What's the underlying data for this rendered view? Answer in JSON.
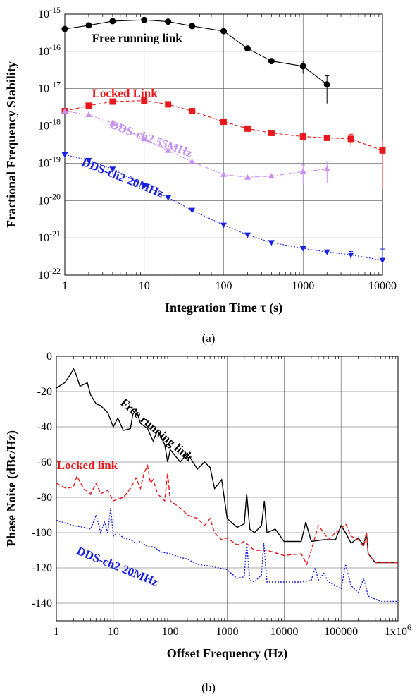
{
  "colors": {
    "black": "#000000",
    "red": "#e8191c",
    "violet": "#c890f0",
    "blue": "#1a22e0",
    "grid": "#555555"
  },
  "chart_data": [
    {
      "type": "line",
      "caption": "(a)",
      "xlabel": "Integration Time  τ (s)",
      "ylabel": "Fractional Frequency Stability",
      "x_scale": "log",
      "y_scale": "log",
      "xlim": [
        1,
        10000
      ],
      "ylim": [
        1e-22,
        1e-15
      ],
      "grid": true,
      "x_ticks": [
        {
          "v": 1,
          "label": "1"
        },
        {
          "v": 10,
          "label": "10"
        },
        {
          "v": 100,
          "label": "100"
        },
        {
          "v": 1000,
          "label": "1000"
        },
        {
          "v": 10000,
          "label": "10000"
        }
      ],
      "y_ticks": [
        {
          "v": 1e-15,
          "base": "10",
          "exp": "-15"
        },
        {
          "v": 1e-16,
          "base": "10",
          "exp": "-16"
        },
        {
          "v": 1e-17,
          "base": "10",
          "exp": "-17"
        },
        {
          "v": 1e-18,
          "base": "10",
          "exp": "-18"
        },
        {
          "v": 1e-19,
          "base": "10",
          "exp": "-19"
        },
        {
          "v": 1e-20,
          "base": "10",
          "exp": "-20"
        },
        {
          "v": 1e-21,
          "base": "10",
          "exp": "-21"
        },
        {
          "v": 1e-22,
          "base": "10",
          "exp": "-22"
        }
      ],
      "series": [
        {
          "name": "Free running link",
          "color": "#000000",
          "marker": "circle",
          "dash": "",
          "x": [
            1,
            2,
            4,
            10,
            20,
            40,
            100,
            200,
            400,
            1000,
            2000
          ],
          "y": [
            4e-16,
            5e-16,
            6.5e-16,
            7e-16,
            6.3e-16,
            4.8e-16,
            3.5e-16,
            1.2e-16,
            5.5e-17,
            4e-17,
            1.3e-17
          ],
          "err": [
            0,
            0,
            0,
            0,
            0,
            0,
            0,
            0,
            0,
            1.5e-17,
            9e-18
          ]
        },
        {
          "name": "Locked Link",
          "color": "#e8191c",
          "marker": "square",
          "dash": "5,3",
          "x": [
            1,
            2,
            4,
            10,
            20,
            40,
            100,
            200,
            400,
            1000,
            2000,
            4000,
            10000
          ],
          "y": [
            2.5e-18,
            3.5e-18,
            4.5e-18,
            4.8e-18,
            3.8e-18,
            2.5e-18,
            1.3e-18,
            8.5e-19,
            6.5e-19,
            5.2e-19,
            4.8e-19,
            4.5e-19,
            2.2e-19
          ],
          "err": [
            0,
            0,
            0,
            0,
            0,
            0,
            0,
            0,
            0,
            0,
            0,
            1.5e-19,
            2e-19
          ]
        },
        {
          "name": "DDS-ch2 55MHz",
          "color": "#c890f0",
          "marker": "triangle-up",
          "dash": "6,2,2,2",
          "x": [
            1,
            2,
            4,
            10,
            20,
            40,
            100,
            200,
            400,
            1000,
            2000
          ],
          "y": [
            2.5e-18,
            2e-18,
            1.2e-18,
            4.5e-19,
            2.2e-19,
            1.1e-19,
            5e-20,
            4.2e-20,
            4.5e-20,
            6e-20,
            7e-20
          ],
          "err": [
            0,
            0,
            0,
            0,
            0,
            0,
            0,
            0,
            0,
            3e-20,
            4e-20
          ]
        },
        {
          "name": "DDS-ch2 20MHz",
          "color": "#1a22e0",
          "marker": "triangle-down",
          "dash": "2,2",
          "x": [
            1,
            2,
            4,
            10,
            20,
            40,
            100,
            200,
            400,
            1000,
            2000,
            4000,
            10000
          ],
          "y": [
            1.7e-19,
            1.2e-19,
            7e-20,
            2.5e-20,
            1.2e-20,
            5.5e-21,
            2.2e-21,
            1.2e-21,
            7.5e-22,
            5.2e-22,
            4.2e-22,
            3.5e-22,
            2.5e-22
          ],
          "err": [
            0,
            0,
            0,
            0,
            0,
            0,
            0,
            0,
            0,
            0,
            0,
            8e-23,
            2.5e-22
          ]
        }
      ],
      "annotations": [
        {
          "text": "Free running link",
          "color": "#000000",
          "x": 2.2,
          "y": 1.8e-16,
          "angle": 0
        },
        {
          "text": "Locked Link",
          "color": "#e8191c",
          "x": 2.2,
          "y": 6e-18,
          "angle": 0
        },
        {
          "text": "DDS-ch2 55MHz",
          "color": "#c890f0",
          "x": 3.6,
          "y": 9e-19,
          "angle": 20
        },
        {
          "text": "DDS-ch2 20MHz",
          "color": "#1a22e0",
          "x": 1.6,
          "y": 9e-20,
          "angle": 22
        }
      ]
    },
    {
      "type": "line",
      "caption": "(b)",
      "xlabel": "Offset Frequency (Hz)",
      "ylabel": "Phase Noise (dBc/Hz)",
      "x_scale": "log",
      "y_scale": "linear",
      "xlim": [
        1,
        1000000
      ],
      "ylim": [
        -150,
        0
      ],
      "grid": true,
      "x_ticks": [
        {
          "v": 1,
          "label": "1"
        },
        {
          "v": 10,
          "label": "10"
        },
        {
          "v": 100,
          "label": "100"
        },
        {
          "v": 1000,
          "label": "1000"
        },
        {
          "v": 10000,
          "label": "10000"
        },
        {
          "v": 100000,
          "label": "100000"
        },
        {
          "v": 1000000,
          "label": "1x10",
          "sup": "6"
        }
      ],
      "y_ticks": [
        {
          "v": 0,
          "label": "0"
        },
        {
          "v": -20,
          "label": "-20"
        },
        {
          "v": -40,
          "label": "-40"
        },
        {
          "v": -60,
          "label": "-60"
        },
        {
          "v": -80,
          "label": "-80"
        },
        {
          "v": -100,
          "label": "-100"
        },
        {
          "v": -120,
          "label": "-120"
        },
        {
          "v": -140,
          "label": "-140"
        }
      ],
      "series": [
        {
          "name": "Free running link",
          "color": "#000000",
          "dash": "",
          "x": [
            1,
            1.4,
            1.8,
            2,
            2.2,
            2.6,
            3.5,
            4,
            5,
            6,
            8,
            10,
            12,
            15,
            20,
            22,
            25,
            30,
            40,
            50,
            60,
            80,
            90,
            100,
            150,
            200,
            300,
            400,
            500,
            600,
            800,
            1000,
            1500,
            2000,
            2200,
            2500,
            3000,
            4000,
            4500,
            5000,
            7000,
            10000,
            20000,
            24000,
            30000,
            50000,
            80000,
            100000,
            120000,
            150000,
            200000,
            250000,
            280000,
            300000,
            400000,
            1000000
          ],
          "y": [
            -18,
            -15,
            -10,
            -7,
            -10,
            -17,
            -15,
            -22,
            -27,
            -28,
            -32,
            -40,
            -35,
            -42,
            -41,
            -33,
            -30,
            -38,
            -41,
            -48,
            -42,
            -50,
            -60,
            -53,
            -60,
            -55,
            -64,
            -60,
            -63,
            -75,
            -70,
            -92,
            -97,
            -95,
            -78,
            -98,
            -100,
            -96,
            -82,
            -100,
            -98,
            -105,
            -105,
            -94,
            -105,
            -104,
            -104,
            -96,
            -100,
            -106,
            -103,
            -107,
            -100,
            -112,
            -117,
            -117
          ]
        },
        {
          "name": "Locked link",
          "color": "#e8191c",
          "dash": "6,3",
          "x": [
            1,
            1.5,
            2,
            2.3,
            3,
            4,
            5,
            6,
            8,
            10,
            15,
            20,
            25,
            30,
            35,
            40,
            45,
            50,
            60,
            80,
            90,
            100,
            150,
            200,
            300,
            400,
            500,
            600,
            800,
            1000,
            1500,
            2000,
            3000,
            5000,
            10000,
            20000,
            25000,
            30000,
            40000,
            50000,
            60000,
            80000,
            100000,
            120000,
            150000,
            200000,
            250000,
            280000,
            300000,
            400000,
            1000000
          ],
          "y": [
            -72,
            -75,
            -74,
            -68,
            -75,
            -78,
            -72,
            -78,
            -76,
            -82,
            -80,
            -75,
            -69,
            -75,
            -66,
            -62,
            -72,
            -70,
            -78,
            -82,
            -66,
            -82,
            -86,
            -90,
            -92,
            -96,
            -92,
            -100,
            -104,
            -103,
            -107,
            -105,
            -110,
            -110,
            -113,
            -112,
            -118,
            -110,
            -96,
            -100,
            -104,
            -100,
            -98,
            -95,
            -102,
            -104,
            -108,
            -100,
            -112,
            -117,
            -117
          ]
        },
        {
          "name": "DDS-ch2 20MHz",
          "color": "#1a22e0",
          "dash": "2,2",
          "x": [
            1,
            2,
            3,
            4,
            5,
            6,
            7,
            8,
            9,
            10,
            12,
            15,
            20,
            25,
            30,
            40,
            50,
            70,
            100,
            150,
            200,
            300,
            500,
            1000,
            1500,
            2000,
            2200,
            2500,
            3000,
            4000,
            4400,
            5000,
            7000,
            10000,
            20000,
            30000,
            35000,
            40000,
            50000,
            60000,
            80000,
            100000,
            120000,
            150000,
            200000,
            250000,
            300000,
            500000,
            1000000
          ],
          "y": [
            -93,
            -96,
            -97,
            -98,
            -90,
            -100,
            -94,
            -100,
            -86,
            -102,
            -100,
            -103,
            -104,
            -106,
            -105,
            -108,
            -108,
            -111,
            -112,
            -114,
            -115,
            -118,
            -119,
            -121,
            -126,
            -125,
            -106,
            -127,
            -128,
            -124,
            -106,
            -128,
            -128,
            -128,
            -128,
            -127,
            -120,
            -127,
            -123,
            -128,
            -130,
            -132,
            -118,
            -130,
            -134,
            -126,
            -136,
            -139,
            -139
          ]
        }
      ],
      "annotations": [
        {
          "text": "Free running link",
          "color": "#000000",
          "x": 13,
          "y": -27,
          "angle": 40
        },
        {
          "text": "Locked link",
          "color": "#e8191c",
          "x": 1.02,
          "y": -64,
          "angle": 0
        },
        {
          "text": "DDS-ch2 20MHz",
          "color": "#1a22e0",
          "x": 2.2,
          "y": -112,
          "angle": 22
        }
      ]
    }
  ]
}
